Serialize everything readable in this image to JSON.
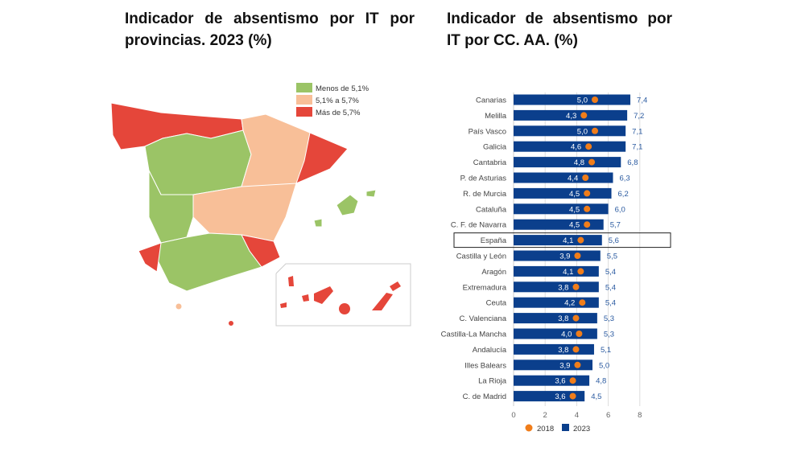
{
  "titles": {
    "map": "Indicador de absentismo por IT por provincias. 2023 (%)",
    "chart": "Indicador de absentismo por IT por CC. AA. (%)"
  },
  "map_legend": [
    {
      "label": "Menos de 5,1%",
      "color": "#9bc466"
    },
    {
      "label": "5,1% a 5,7%",
      "color": "#f8bf98"
    },
    {
      "label": "Más de 5,7%",
      "color": "#e5463a"
    }
  ],
  "chart_data": {
    "type": "bar",
    "orientation": "horizontal",
    "title": "Indicador de absentismo por IT por CC. AA. (%)",
    "categories": [
      "Canarias",
      "Melilla",
      "País Vasco",
      "Galicia",
      "Cantabria",
      "P. de Asturias",
      "R. de Murcia",
      "Cataluña",
      "C. F. de Navarra",
      "España",
      "Castilla y León",
      "Aragón",
      "Extremadura",
      "Ceuta",
      "C. Valenciana",
      "Castilla-La Mancha",
      "Andalucía",
      "Illes Balears",
      "La Rioja",
      "C. de Madrid"
    ],
    "series": [
      {
        "name": "2018",
        "mark": "dot",
        "color": "#f07d1a",
        "values": [
          5.0,
          4.3,
          5.0,
          4.6,
          4.8,
          4.4,
          4.5,
          4.5,
          4.5,
          4.1,
          3.9,
          4.1,
          3.8,
          4.2,
          3.8,
          4.0,
          3.8,
          3.9,
          3.6,
          3.6
        ]
      },
      {
        "name": "2023",
        "mark": "bar",
        "color": "#0b3f8c",
        "values": [
          7.4,
          7.2,
          7.1,
          7.1,
          6.8,
          6.3,
          6.2,
          6.0,
          5.7,
          5.6,
          5.5,
          5.4,
          5.4,
          5.4,
          5.3,
          5.3,
          5.1,
          5.0,
          4.8,
          4.5
        ]
      }
    ],
    "highlight": "España",
    "xlim": [
      0,
      8
    ],
    "xticks": [
      "0",
      "2",
      "4",
      "6",
      "8"
    ],
    "grid": true,
    "legend": "bottom"
  }
}
